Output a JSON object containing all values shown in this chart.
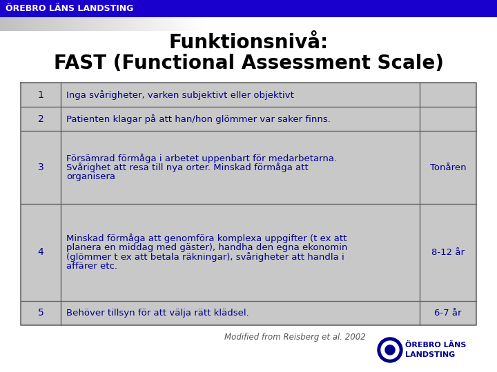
{
  "header_text": "ÖREBRO LÄNS LANDSTING",
  "header_bg": "#1a00cc",
  "header_text_color": "#ffffff",
  "title_line1": "Funktionsnivå:",
  "title_line2": "FAST (Functional Assessment Scale)",
  "title_fontsize": 20,
  "bg_color": "#ffffff",
  "table_bg": "#c8c8c8",
  "table_border": "#666666",
  "table_text_color": "#00008b",
  "rows": [
    {
      "num": "1",
      "description": "Inga svårigheter, varken subjektivt eller objektivt",
      "age": ""
    },
    {
      "num": "2",
      "description": "Patienten klagar på att han/hon glömmer var saker finns.",
      "age": ""
    },
    {
      "num": "3",
      "description": "Försämrad förmåga i arbetet uppenbart för medarbetarna.\nSvårighet att resa till nya orter. Minskad förmåga att\norganisera",
      "age": "Tonåren"
    },
    {
      "num": "4",
      "description": "Minskad förmåga att genomföra komplexa uppgifter (t ex att\nplanera en middag med gäster), handha den egna ekonomin\n(glömmer t ex att betala räkningar), svårigheter att handla i\naffärer etc.",
      "age": "8-12 år"
    },
    {
      "num": "5",
      "description": "Behöver tillsyn för att välja rätt klädsel.",
      "age": "6-7 år"
    }
  ],
  "footer_text": "Modified from Reisberg et al. 2002",
  "logo_color": "#00008b",
  "logo_text1": "ÖREBRO LÄNS",
  "logo_text2": "LANDSTING"
}
